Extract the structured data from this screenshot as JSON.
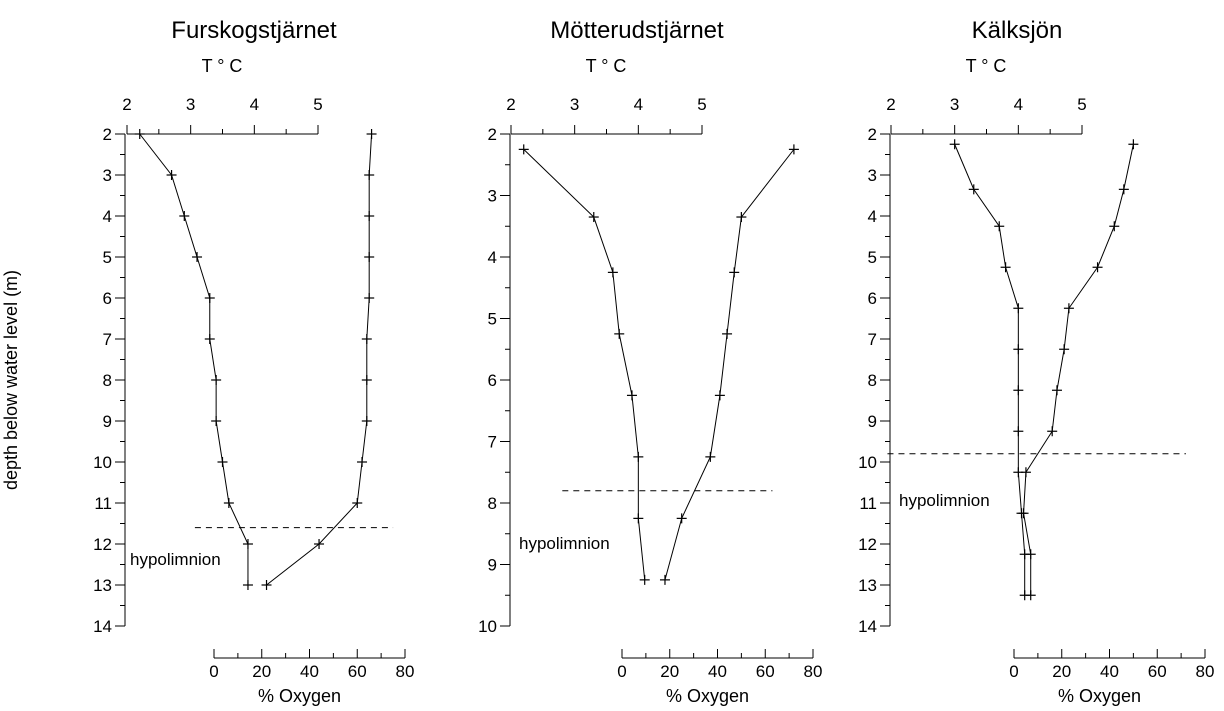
{
  "y_axis_label": "depth below water level (m)",
  "chart_data": [
    {
      "type": "line",
      "title": "Furskogstjärnet",
      "x_top_label": "T ° C",
      "x_top_ticks": [
        "2",
        "3",
        "4",
        "5"
      ],
      "x_top_range": [
        2,
        5
      ],
      "x_bottom_label": "% Oxygen",
      "x_bottom_ticks": [
        "0",
        "20",
        "40",
        "60",
        "80"
      ],
      "x_bottom_range": [
        0,
        80
      ],
      "y_ticks": [
        "2",
        "3",
        "4",
        "5",
        "6",
        "7",
        "8",
        "9",
        "10",
        "11",
        "12",
        "13",
        "14"
      ],
      "y_range": [
        2,
        14
      ],
      "hypolimnion_label": "hypolimnion",
      "hypolimnion_depth": 11.6,
      "hypolimnion_oxygen_range": [
        -8,
        75
      ],
      "series": [
        {
          "name": "T ° C",
          "points": [
            [
              2.2,
              2
            ],
            [
              2.7,
              3
            ],
            [
              2.9,
              4
            ],
            [
              3.1,
              5
            ],
            [
              3.3,
              6
            ],
            [
              3.3,
              7
            ],
            [
              3.4,
              8
            ],
            [
              3.4,
              9
            ],
            [
              3.5,
              10
            ],
            [
              3.6,
              11
            ],
            [
              3.9,
              12
            ],
            [
              3.9,
              13
            ]
          ]
        },
        {
          "name": "% Oxygen",
          "points": [
            [
              66,
              2
            ],
            [
              65,
              3
            ],
            [
              65,
              4
            ],
            [
              65,
              5
            ],
            [
              65,
              6
            ],
            [
              64,
              7
            ],
            [
              64,
              8
            ],
            [
              64,
              9
            ],
            [
              62,
              10
            ],
            [
              60,
              11
            ],
            [
              44,
              12
            ],
            [
              22,
              13
            ]
          ]
        }
      ]
    },
    {
      "type": "line",
      "title": "Mötterudstjärnet",
      "x_top_label": "T ° C",
      "x_top_ticks": [
        "2",
        "3",
        "4",
        "5"
      ],
      "x_top_range": [
        2,
        5
      ],
      "x_bottom_label": "% Oxygen",
      "x_bottom_ticks": [
        "0",
        "20",
        "40",
        "60",
        "80"
      ],
      "x_bottom_range": [
        0,
        80
      ],
      "y_ticks": [
        "2",
        "3",
        "4",
        "5",
        "6",
        "7",
        "8",
        "9",
        "10"
      ],
      "y_range": [
        2,
        10
      ],
      "hypolimnion_label": "hypolimnion",
      "hypolimnion_depth": 7.8,
      "hypolimnion_oxygen_range": [
        -25,
        63
      ],
      "series": [
        {
          "name": "T ° C",
          "points": [
            [
              2.2,
              2.25
            ],
            [
              3.3,
              3.35
            ],
            [
              3.6,
              4.25
            ],
            [
              3.7,
              5.25
            ],
            [
              3.9,
              6.25
            ],
            [
              4.0,
              7.25
            ],
            [
              4.0,
              8.25
            ],
            [
              4.1,
              9.25
            ]
          ]
        },
        {
          "name": "% Oxygen",
          "points": [
            [
              72,
              2.25
            ],
            [
              50,
              3.35
            ],
            [
              47,
              4.25
            ],
            [
              44,
              5.25
            ],
            [
              41,
              6.25
            ],
            [
              37,
              7.25
            ],
            [
              25,
              8.25
            ],
            [
              18,
              9.25
            ]
          ]
        }
      ]
    },
    {
      "type": "line",
      "title": "Kälksjön",
      "x_top_label": "T ° C",
      "x_top_ticks": [
        "2",
        "3",
        "4",
        "5"
      ],
      "x_top_range": [
        2,
        5
      ],
      "x_bottom_label": "% Oxygen",
      "x_bottom_ticks": [
        "0",
        "20",
        "40",
        "60",
        "80"
      ],
      "x_bottom_range": [
        0,
        80
      ],
      "y_ticks": [
        "2",
        "3",
        "4",
        "5",
        "6",
        "7",
        "8",
        "9",
        "10",
        "11",
        "12",
        "13",
        "14"
      ],
      "y_range": [
        2,
        14
      ],
      "hypolimnion_label": "hypolimnion",
      "hypolimnion_depth": 9.8,
      "hypolimnion_oxygen_range": [
        -53,
        72
      ],
      "series": [
        {
          "name": "T ° C",
          "points": [
            [
              3.0,
              2.25
            ],
            [
              3.3,
              3.35
            ],
            [
              3.7,
              4.25
            ],
            [
              3.8,
              5.25
            ],
            [
              4.0,
              6.25
            ],
            [
              4.0,
              7.25
            ],
            [
              4.0,
              8.25
            ],
            [
              4.0,
              9.25
            ],
            [
              4.0,
              10.25
            ],
            [
              4.05,
              11.25
            ],
            [
              4.1,
              12.25
            ],
            [
              4.1,
              13.25
            ]
          ]
        },
        {
          "name": "% Oxygen",
          "points": [
            [
              50,
              2.25
            ],
            [
              46,
              3.35
            ],
            [
              42,
              4.25
            ],
            [
              35,
              5.25
            ],
            [
              23,
              6.25
            ],
            [
              21,
              7.25
            ],
            [
              18,
              8.25
            ],
            [
              16,
              9.25
            ],
            [
              5,
              10.25
            ],
            [
              4,
              11.25
            ],
            [
              7,
              12.25
            ],
            [
              7,
              13.25
            ]
          ]
        }
      ]
    }
  ]
}
